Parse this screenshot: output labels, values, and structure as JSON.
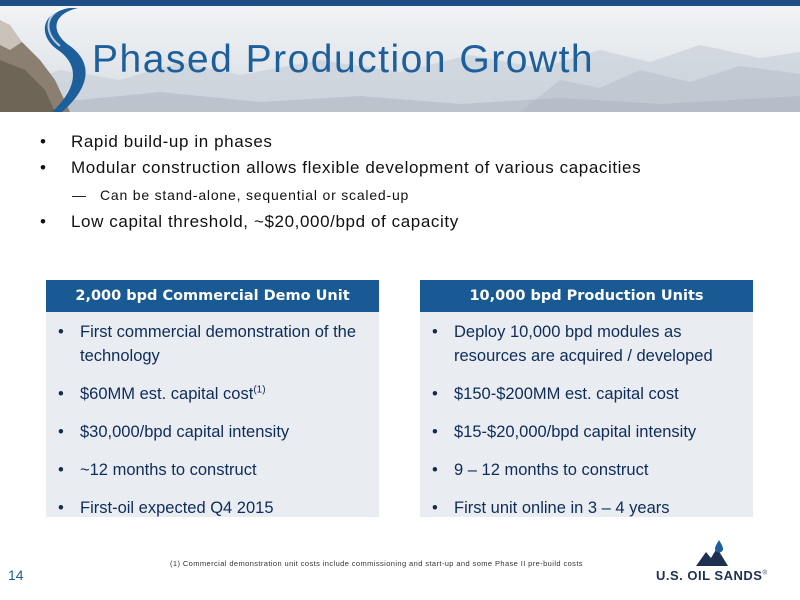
{
  "slide": {
    "title": "Phased Production Growth",
    "page_number": "14"
  },
  "bullets": [
    {
      "text": "Rapid build-up in phases",
      "symbol": "•"
    },
    {
      "text": "Modular construction allows flexible development of various capacities",
      "symbol": "•"
    },
    {
      "text": "Can be stand-alone, sequential or scaled-up",
      "symbol": "—"
    },
    {
      "text": "Low capital threshold, ~$20,000/bpd of capacity",
      "symbol": "•"
    }
  ],
  "boxes": {
    "left": {
      "header": "2,000 bpd Commercial Demo Unit",
      "items": [
        "First commercial demonstration of the technology",
        "$60MM est. capital cost",
        "$30,000/bpd capital intensity",
        "~12 months to construct",
        "First-oil expected Q4 2015"
      ],
      "footnote_ref": "(1)"
    },
    "right": {
      "header": "10,000 bpd Production Units",
      "items": [
        "Deploy 10,000 bpd modules as resources are acquired / developed",
        "$150-$200MM est. capital cost",
        "$15-$20,000/bpd capital intensity",
        "9 – 12 months to construct",
        "First unit online in 3 – 4 years"
      ]
    },
    "bullet_symbol": "•"
  },
  "footnote": "(1)    Commercial demonstration unit costs include commissioning and start-up and some Phase II pre-build costs",
  "logo": {
    "text": "U.S. OIL SANDS",
    "trademark": "®"
  },
  "colors": {
    "title": "#1d5f9a",
    "box_header": "#1a5a94",
    "box_body": "#e9ecf1",
    "box_text": "#0e2c58"
  }
}
